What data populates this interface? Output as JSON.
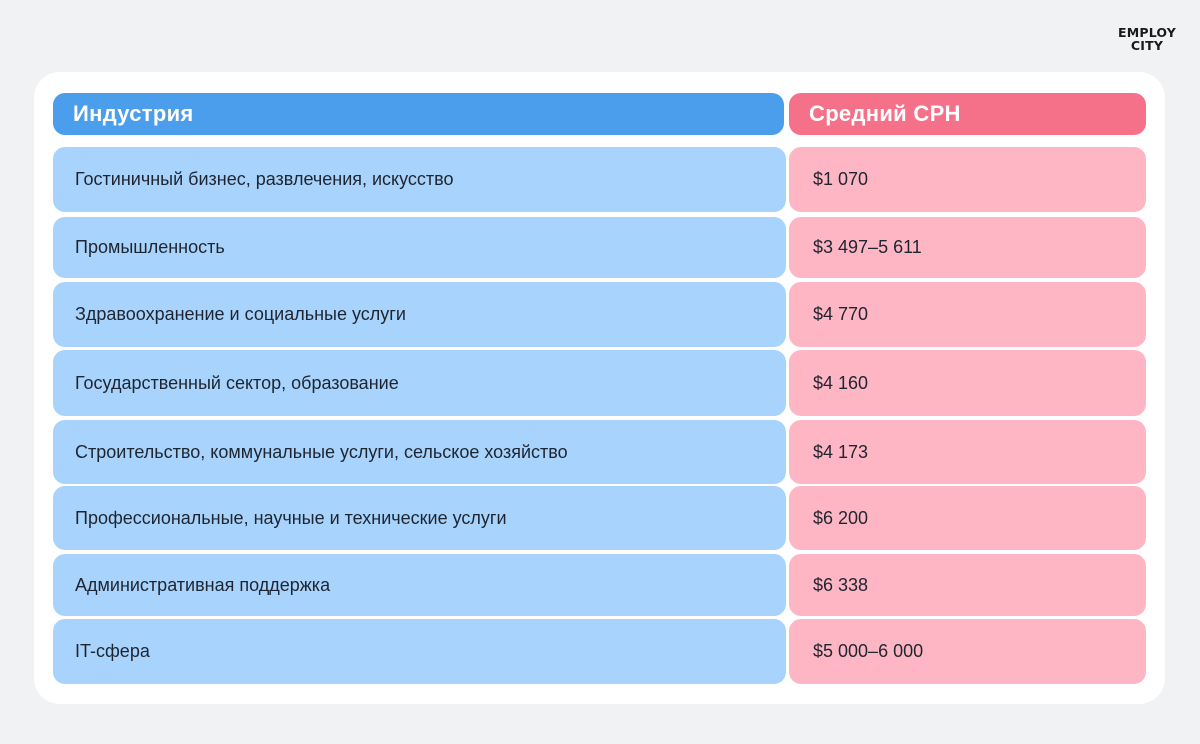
{
  "logo": {
    "line1": "EMPLOY",
    "line2": "CITY"
  },
  "table": {
    "headers": {
      "industry": "Индустрия",
      "avg_cpc": "Средний CPH"
    },
    "rows": [
      {
        "industry": "Гостиничный бизнес, развлечения, искусство",
        "value": "$1 070"
      },
      {
        "industry": "Промышленность",
        "value": "$3 497–5 611"
      },
      {
        "industry": "Здравоохранение и социальные услуги",
        "value": "$4 770"
      },
      {
        "industry": "Государственный сектор, образование",
        "value": "$4 160"
      },
      {
        "industry": "Строительство, коммунальные услуги, сельское хозяйство",
        "value": "$4 173"
      },
      {
        "industry": "Профессиональные, научные и технические услуги",
        "value": "$6 200"
      },
      {
        "industry": "Административная поддержка",
        "value": "$6 338"
      },
      {
        "industry": "IT-сфера",
        "value": "$5 000–6 000"
      }
    ]
  },
  "colors": {
    "page_bg": "#f1f2f4",
    "card_bg": "#ffffff",
    "header_left": "#4a9eec",
    "header_right": "#f47189",
    "cell_left": "#a7d3fc",
    "cell_right": "#ffb6c4"
  }
}
